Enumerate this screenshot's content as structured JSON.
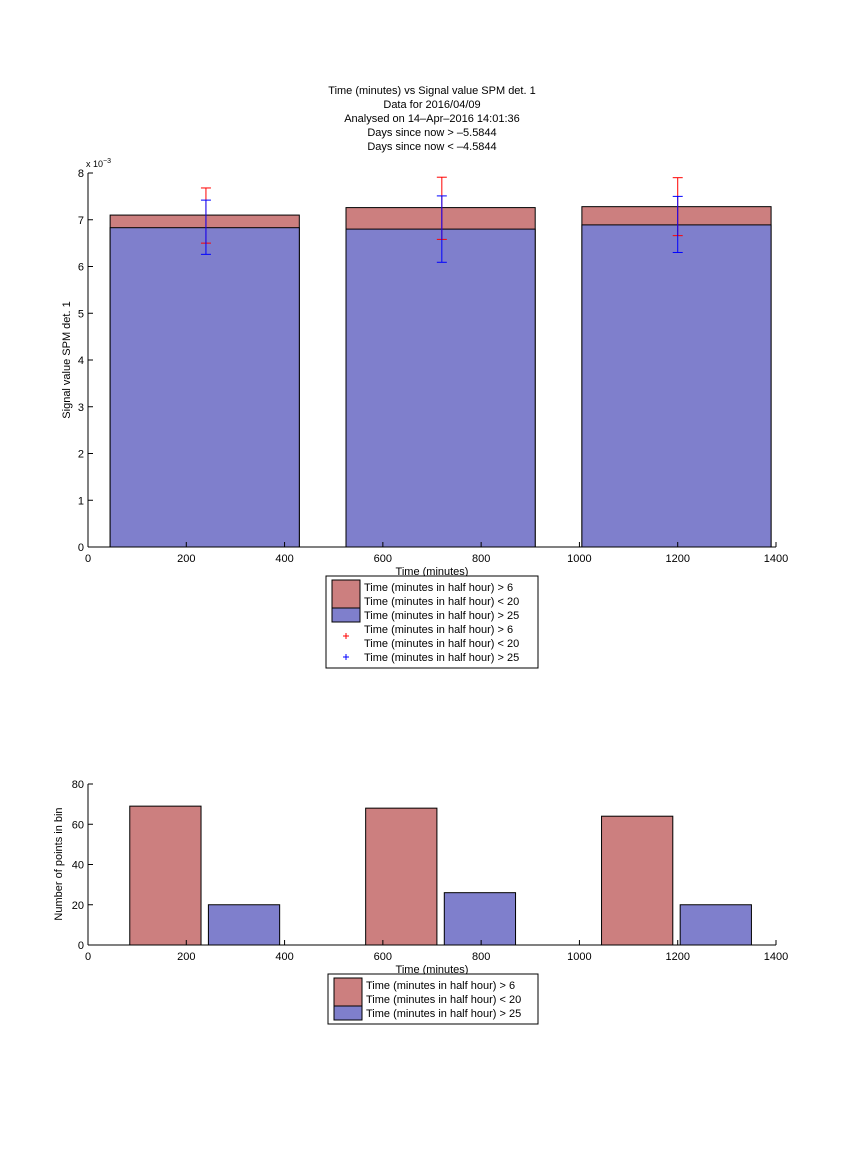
{
  "chart_data": [
    {
      "type": "bar",
      "title_lines": [
        "Time (minutes) vs Signal value SPM det. 1",
        "Data for 2016/04/09",
        "Analysed on 14–Apr–2016 14:01:36",
        "Days since now > –5.5844",
        "Days since now < –4.5844"
      ],
      "xlabel": "Time (minutes)",
      "ylabel": "Signal value SPM det. 1",
      "y_exponent_label": "x 10",
      "y_exponent": "−3",
      "xlim": [
        0,
        1400
      ],
      "ylim": [
        0,
        0.008
      ],
      "x_ticks": [
        0,
        200,
        400,
        600,
        800,
        1000,
        1200,
        1400
      ],
      "y_ticks": [
        0,
        0.001,
        0.002,
        0.003,
        0.004,
        0.005,
        0.006,
        0.007,
        0.008
      ],
      "y_tick_labels": [
        "0",
        "1",
        "2",
        "3",
        "4",
        "5",
        "6",
        "7",
        "8"
      ],
      "bar_ranges": [
        [
          45,
          430
        ],
        [
          525,
          910
        ],
        [
          1005,
          1390
        ]
      ],
      "series": [
        {
          "name": "Time (minutes in half hour) > 6\nTime (minutes in half hour) < 20",
          "color": "#cc7f7f",
          "values": [
            0.0071,
            0.00726,
            0.00728
          ],
          "error_x": [
            240,
            720,
            1200
          ],
          "error_low": [
            0.0065,
            0.00658,
            0.00666
          ],
          "error_high": [
            0.00768,
            0.00791,
            0.0079
          ],
          "error_color": "#ff0000"
        },
        {
          "name": "Time (minutes in half hour) > 25",
          "color": "#7f7fcc",
          "values": [
            0.00683,
            0.0068,
            0.00689
          ],
          "error_x": [
            240,
            720,
            1200
          ],
          "error_low": [
            0.00626,
            0.00609,
            0.0063
          ],
          "error_high": [
            0.00742,
            0.00751,
            0.0075
          ],
          "error_color": "#0000ff"
        }
      ],
      "legend": {
        "placement": "below",
        "entries": [
          {
            "kind": "bar",
            "color": "#cc7f7f",
            "lines": [
              "Time (minutes in half hour) > 6",
              "Time (minutes in half hour) < 20"
            ]
          },
          {
            "kind": "bar",
            "color": "#7f7fcc",
            "lines": [
              "Time (minutes in half hour) > 25"
            ]
          },
          {
            "kind": "plus",
            "color": "#ff0000",
            "lines": [
              "Time (minutes in half hour) > 6",
              "Time (minutes in half hour) < 20"
            ]
          },
          {
            "kind": "plus",
            "color": "#0000ff",
            "lines": [
              "Time (minutes in half hour) > 25"
            ]
          }
        ]
      }
    },
    {
      "type": "bar",
      "xlabel": "Time (minutes)",
      "ylabel": "Number of points in bin",
      "xlim": [
        0,
        1400
      ],
      "ylim": [
        0,
        80
      ],
      "x_ticks": [
        0,
        200,
        400,
        600,
        800,
        1000,
        1200,
        1400
      ],
      "y_ticks": [
        0,
        20,
        40,
        60,
        80
      ],
      "series": [
        {
          "name": "Time (minutes in half hour) > 6\nTime (minutes in half hour) < 20",
          "color": "#cc7f7f",
          "x_ranges": [
            [
              85,
              230
            ],
            [
              565,
              710
            ],
            [
              1045,
              1190
            ]
          ],
          "values": [
            69,
            68,
            64
          ]
        },
        {
          "name": "Time (minutes in half hour) > 25",
          "color": "#7f7fcc",
          "x_ranges": [
            [
              245,
              390
            ],
            [
              725,
              870
            ],
            [
              1205,
              1350
            ]
          ],
          "values": [
            20,
            26,
            20
          ]
        }
      ],
      "legend": {
        "placement": "below",
        "entries": [
          {
            "kind": "bar",
            "color": "#cc7f7f",
            "lines": [
              "Time (minutes in half hour) > 6",
              "Time (minutes in half hour) < 20"
            ]
          },
          {
            "kind": "bar",
            "color": "#7f7fcc",
            "lines": [
              "Time (minutes in half hour) > 25"
            ]
          }
        ]
      }
    }
  ]
}
